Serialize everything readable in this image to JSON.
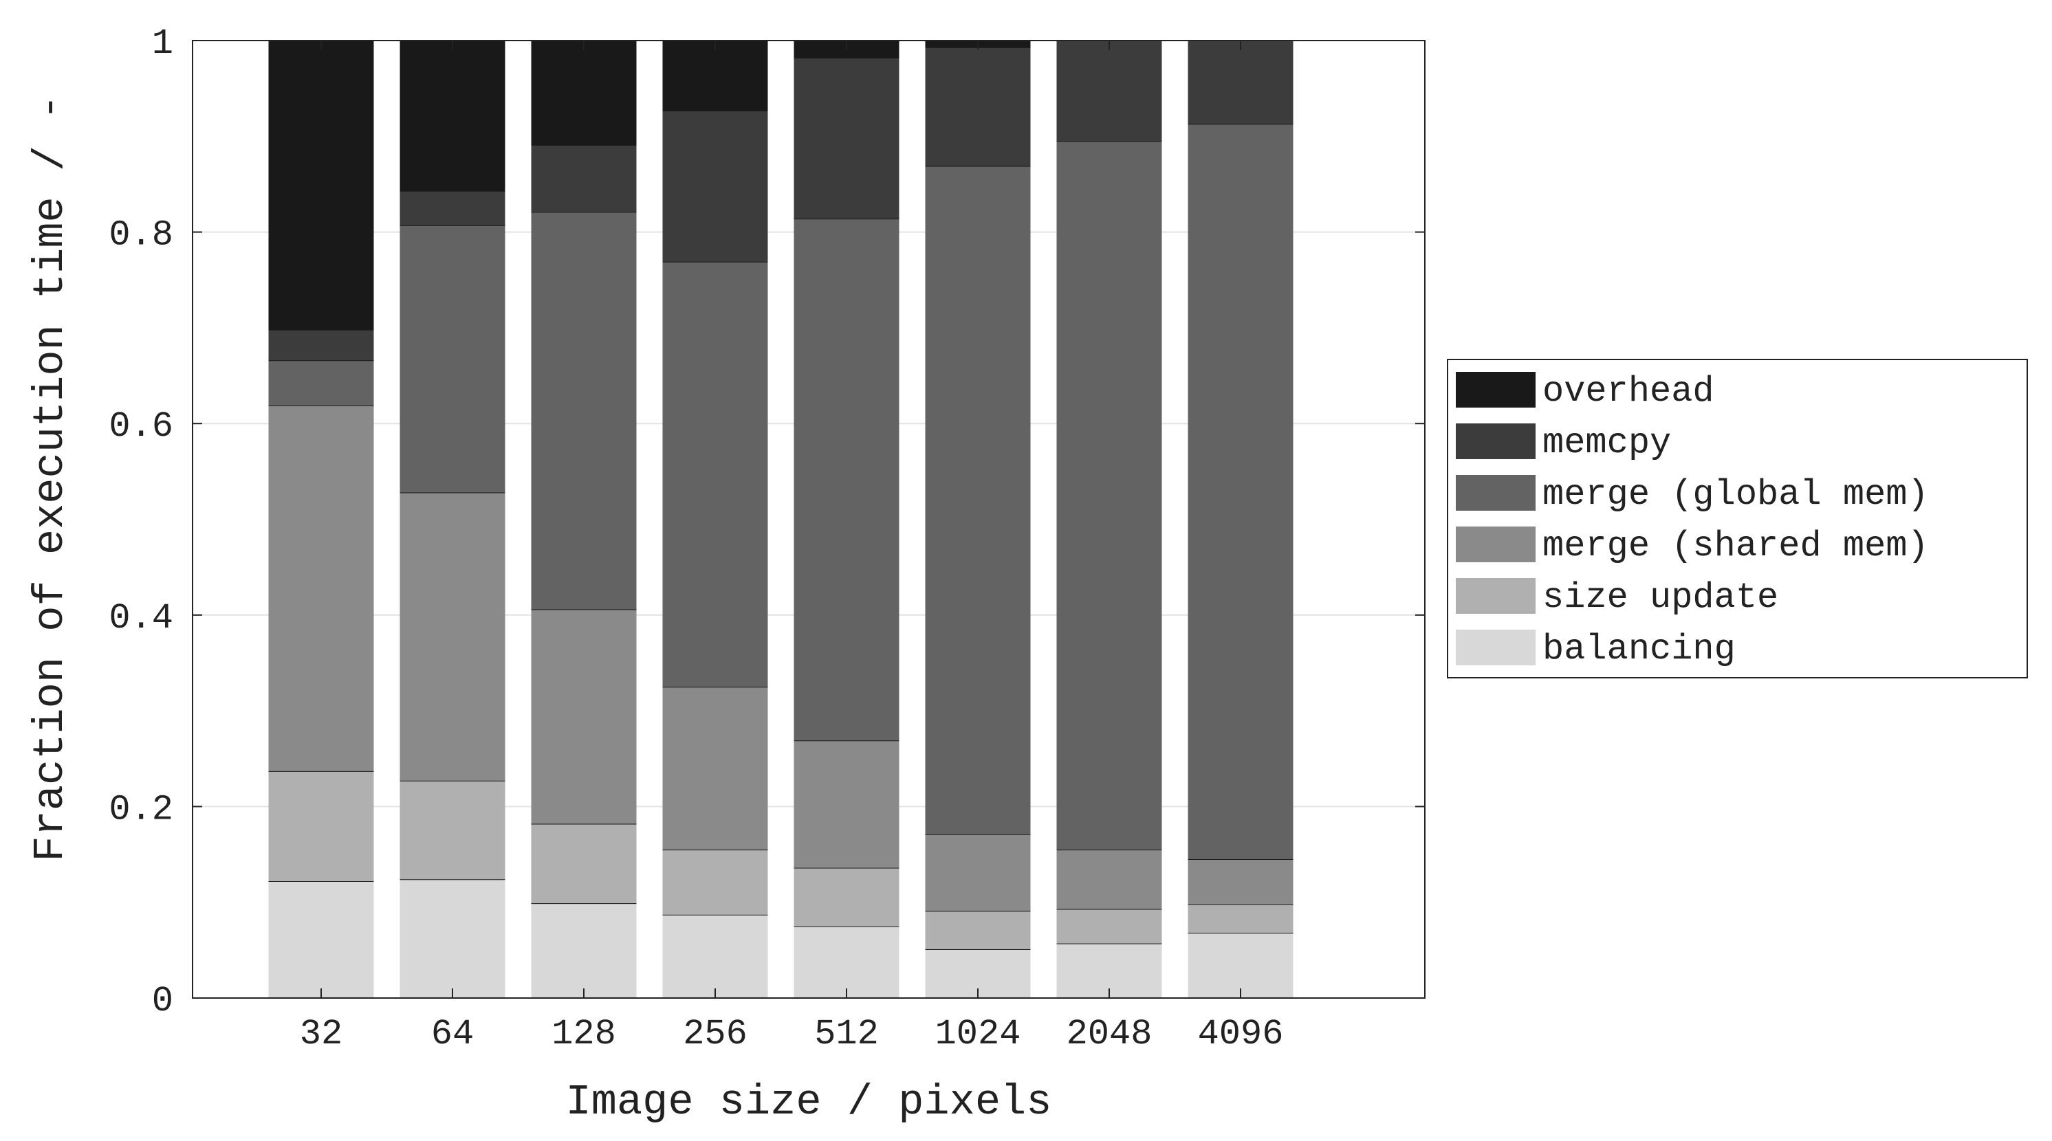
{
  "chart_data": {
    "type": "bar",
    "stacked": true,
    "title": "",
    "xlabel": "Image size / pixels",
    "ylabel": "Fraction of execution time / -",
    "categories": [
      "32",
      "64",
      "128",
      "256",
      "512",
      "1024",
      "2048",
      "4096"
    ],
    "ylim": [
      0,
      1
    ],
    "yticks": [
      "0",
      "0.2",
      "0.4",
      "0.6",
      "0.8",
      "1"
    ],
    "grid": true,
    "legend_position": "right",
    "series": [
      {
        "name": "balancing",
        "color": "#d8d8d8",
        "values": [
          0.122,
          0.124,
          0.099,
          0.087,
          0.075,
          0.051,
          0.057,
          0.068
        ]
      },
      {
        "name": "size update",
        "color": "#b0b0b0",
        "values": [
          0.115,
          0.103,
          0.083,
          0.068,
          0.061,
          0.04,
          0.036,
          0.03
        ]
      },
      {
        "name": "merge (shared mem)",
        "color": "#8a8a8a",
        "values": [
          0.382,
          0.301,
          0.224,
          0.17,
          0.133,
          0.08,
          0.062,
          0.047
        ]
      },
      {
        "name": "merge (global mem)",
        "color": "#636363",
        "values": [
          0.047,
          0.279,
          0.415,
          0.444,
          0.545,
          0.698,
          0.74,
          0.768
        ]
      },
      {
        "name": "memcpy",
        "color": "#3c3c3c",
        "values": [
          0.032,
          0.036,
          0.07,
          0.158,
          0.168,
          0.124,
          0.105,
          0.087
        ]
      },
      {
        "name": "overhead",
        "color": "#191919",
        "values": [
          0.302,
          0.157,
          0.109,
          0.073,
          0.018,
          0.007,
          0.0,
          0.0
        ]
      }
    ]
  }
}
